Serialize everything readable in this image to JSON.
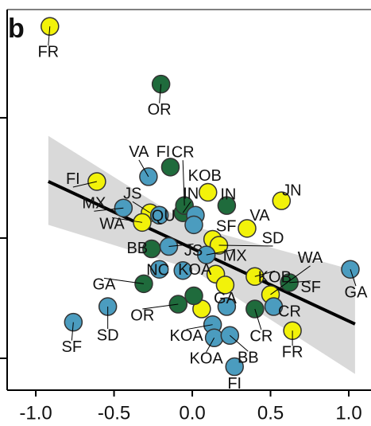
{
  "chart_data": {
    "type": "scatter",
    "panel_label": "b",
    "xlim": [
      -1.183,
      1.142
    ],
    "ylim": [
      -1.265,
      1.9
    ],
    "xticks": [
      {
        "value": -1,
        "label": "-1.0"
      },
      {
        "value": -0.5,
        "label": "-0.5"
      },
      {
        "value": 0,
        "label": "0.0"
      },
      {
        "value": 0.5,
        "label": "0.5"
      },
      {
        "value": 1,
        "label": "1.0"
      }
    ],
    "yticks": [
      -1,
      0,
      1
    ],
    "fit": {
      "x": [
        -0.92,
        1.04
      ],
      "y": [
        0.47,
        -0.715
      ],
      "color": "#000000"
    },
    "band": {
      "x": [
        -0.92,
        0,
        1.04
      ],
      "lower": [
        0.11,
        -0.26,
        -1.13
      ],
      "upper": [
        0.85,
        0.1,
        -0.27
      ],
      "color": "#d9d9d9"
    },
    "series": [
      {
        "color": "#f2f20a",
        "x": [
          -0.91,
          -0.61,
          0.1,
          0.57,
          0.35,
          -0.27,
          -0.32,
          0.13,
          0.17,
          0.15,
          0.21,
          0.4,
          0.5,
          0.06,
          0.64
        ],
        "values": [
          1.76,
          0.47,
          0.38,
          0.31,
          0.08,
          0.21,
          0.13,
          -0.01,
          -0.06,
          -0.3,
          -0.39,
          -0.32,
          -0.47,
          -0.59,
          -0.77
        ],
        "labels": [
          "FR",
          "FI",
          "KOB",
          "JN",
          "VA",
          "JS",
          "WA",
          "SF",
          "SD",
          null,
          "GA",
          "KOB",
          "WA",
          null,
          "FR"
        ]
      },
      {
        "color": "#1f6b3c",
        "x": [
          -0.2,
          -0.14,
          0.22,
          -0.06,
          -0.26,
          -0.31,
          0.62,
          -0.09,
          0.01,
          0.4,
          -0.05
        ],
        "values": [
          1.28,
          0.59,
          0.27,
          0.21,
          -0.09,
          -0.38,
          -0.37,
          -0.55,
          -0.48,
          -0.59,
          0.27
        ],
        "labels": [
          "OR",
          "FI",
          "IN",
          "IN",
          "BB",
          "GA",
          "SF",
          "OR",
          null,
          "CR",
          "CR"
        ]
      },
      {
        "color": "#4b9cbf",
        "x": [
          -0.28,
          -0.44,
          -0.21,
          0.02,
          0.01,
          -0.15,
          0.09,
          -0.06,
          -0.21,
          1.01,
          -0.54,
          -0.76,
          0.22,
          0.13,
          0.14,
          0.24,
          0.52,
          0.27
        ],
        "values": [
          0.51,
          0.25,
          0.19,
          0.19,
          0.11,
          -0.07,
          -0.14,
          -0.27,
          -0.26,
          -0.26,
          -0.57,
          -0.7,
          -0.57,
          -0.72,
          -0.83,
          -0.81,
          -0.57,
          -1.07
        ],
        "labels": [
          "VA",
          "MX",
          "QU",
          null,
          null,
          "JS",
          "MX",
          "KOA",
          "NC",
          "GA",
          "SD",
          "SF",
          null,
          "KOA",
          "KOA",
          "BB",
          "CR",
          "FI"
        ]
      }
    ]
  }
}
